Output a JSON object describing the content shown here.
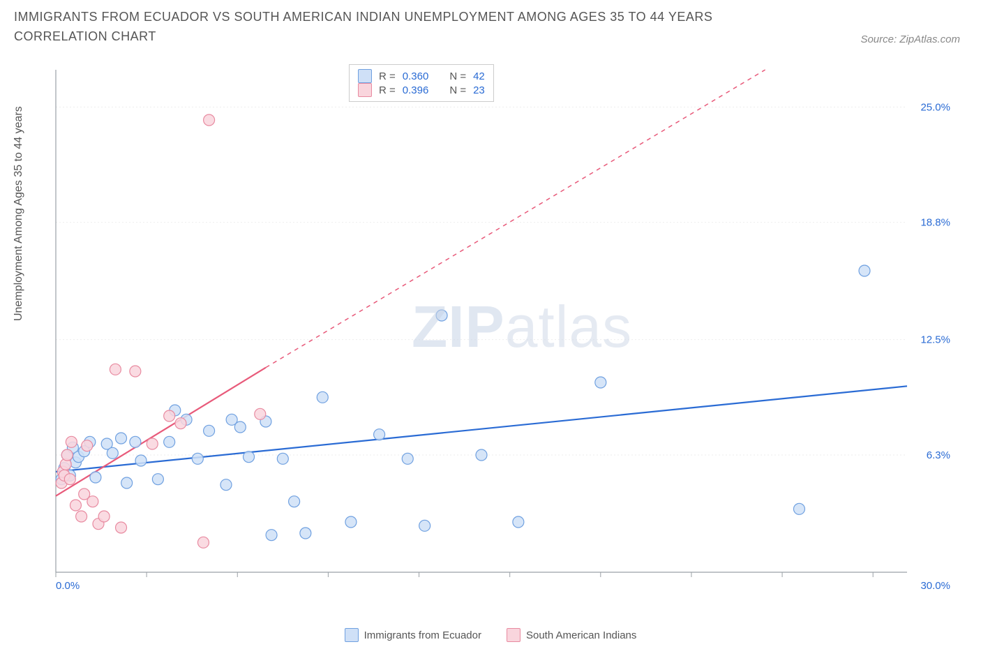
{
  "title": "IMMIGRANTS FROM ECUADOR VS SOUTH AMERICAN INDIAN UNEMPLOYMENT AMONG AGES 35 TO 44 YEARS CORRELATION CHART",
  "source_label": "Source: ZipAtlas.com",
  "ylabel": "Unemployment Among Ages 35 to 44 years",
  "watermark_bold": "ZIP",
  "watermark_light": "atlas",
  "chart": {
    "type": "scatter",
    "xlim": [
      0,
      30
    ],
    "ylim": [
      0,
      27
    ],
    "x_ticks": [
      0,
      3.2,
      6.4,
      9.6,
      12.8,
      16,
      19.2,
      22.4,
      25.6,
      28.8
    ],
    "x_tick_labels": {
      "0": "0.0%",
      "30": "30.0%"
    },
    "y_ticks": [
      6.3,
      12.5,
      18.8,
      25.0
    ],
    "y_tick_labels": [
      "6.3%",
      "12.5%",
      "18.8%",
      "25.0%"
    ],
    "grid_color": "#eeeeee",
    "axis_color": "#9aa0a6",
    "background": "#ffffff",
    "tick_label_color": "#2a6bd4",
    "tick_label_fontsize": 15,
    "marker_radius": 8,
    "marker_stroke_width": 1.2,
    "series": [
      {
        "name": "Immigrants from Ecuador",
        "color_fill": "#cfe0f7",
        "color_stroke": "#6fa0e0",
        "R": "0.360",
        "N": "42",
        "trend": {
          "x1": 0,
          "y1": 5.4,
          "x2": 30,
          "y2": 10.0,
          "dash_after_x": 30,
          "color": "#2a6bd4",
          "width": 2.2
        },
        "points": [
          [
            0.2,
            5.0
          ],
          [
            0.3,
            5.6
          ],
          [
            0.4,
            6.3
          ],
          [
            0.5,
            5.2
          ],
          [
            0.6,
            6.7
          ],
          [
            0.7,
            5.9
          ],
          [
            0.8,
            6.2
          ],
          [
            1.0,
            6.5
          ],
          [
            1.2,
            7.0
          ],
          [
            1.4,
            5.1
          ],
          [
            1.8,
            6.9
          ],
          [
            2.0,
            6.4
          ],
          [
            2.3,
            7.2
          ],
          [
            2.5,
            4.8
          ],
          [
            2.8,
            7.0
          ],
          [
            3.0,
            6.0
          ],
          [
            3.6,
            5.0
          ],
          [
            4.0,
            7.0
          ],
          [
            4.2,
            8.7
          ],
          [
            4.6,
            8.2
          ],
          [
            5.0,
            6.1
          ],
          [
            5.4,
            7.6
          ],
          [
            6.0,
            4.7
          ],
          [
            6.2,
            8.2
          ],
          [
            6.5,
            7.8
          ],
          [
            6.8,
            6.2
          ],
          [
            7.4,
            8.1
          ],
          [
            7.6,
            2.0
          ],
          [
            8.0,
            6.1
          ],
          [
            8.4,
            3.8
          ],
          [
            8.8,
            2.1
          ],
          [
            9.4,
            9.4
          ],
          [
            10.4,
            2.7
          ],
          [
            11.4,
            7.4
          ],
          [
            12.4,
            6.1
          ],
          [
            13.0,
            2.5
          ],
          [
            13.6,
            13.8
          ],
          [
            15.0,
            6.3
          ],
          [
            16.3,
            2.7
          ],
          [
            19.2,
            10.2
          ],
          [
            26.2,
            3.4
          ],
          [
            28.5,
            16.2
          ]
        ]
      },
      {
        "name": "South American Indians",
        "color_fill": "#f9d5dd",
        "color_stroke": "#e88aa0",
        "R": "0.396",
        "N": "23",
        "trend": {
          "x1": 0,
          "y1": 4.1,
          "x2": 7.4,
          "y2": 11.0,
          "dash_after_x": 7.4,
          "dash_x2": 25,
          "dash_y2": 27,
          "color": "#e85a7a",
          "width": 2.2
        },
        "points": [
          [
            0.2,
            4.8
          ],
          [
            0.25,
            5.4
          ],
          [
            0.3,
            5.2
          ],
          [
            0.35,
            5.8
          ],
          [
            0.4,
            6.3
          ],
          [
            0.5,
            5.0
          ],
          [
            0.55,
            7.0
          ],
          [
            0.7,
            3.6
          ],
          [
            0.9,
            3.0
          ],
          [
            1.0,
            4.2
          ],
          [
            1.1,
            6.8
          ],
          [
            1.3,
            3.8
          ],
          [
            1.5,
            2.6
          ],
          [
            1.7,
            3.0
          ],
          [
            2.1,
            10.9
          ],
          [
            2.3,
            2.4
          ],
          [
            2.8,
            10.8
          ],
          [
            3.4,
            6.9
          ],
          [
            4.0,
            8.4
          ],
          [
            4.4,
            8.0
          ],
          [
            5.2,
            1.6
          ],
          [
            5.4,
            24.3
          ],
          [
            7.2,
            8.5
          ]
        ]
      }
    ]
  },
  "legend_top": {
    "r_label": "R =",
    "n_label": "N ="
  },
  "legend_bottom": [
    {
      "swatch_fill": "#cfe0f7",
      "swatch_stroke": "#6fa0e0",
      "label": "Immigrants from Ecuador"
    },
    {
      "swatch_fill": "#f9d5dd",
      "swatch_stroke": "#e88aa0",
      "label": "South American Indians"
    }
  ]
}
